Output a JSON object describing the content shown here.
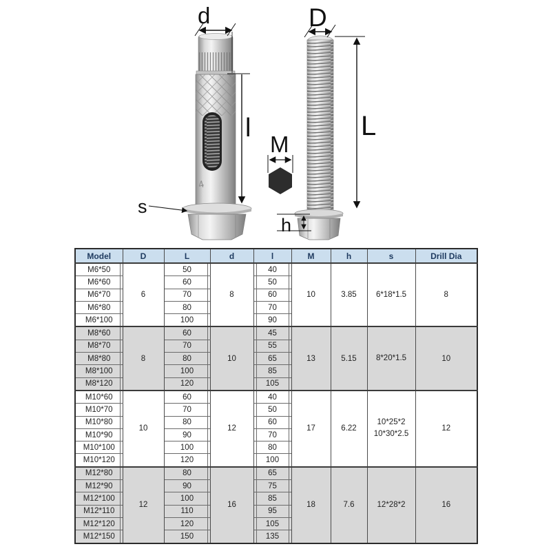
{
  "diagram": {
    "labels": {
      "d": "d",
      "l": "l",
      "s": "s",
      "D": "D",
      "L": "L",
      "M": "M",
      "h": "h"
    },
    "stamp": "4"
  },
  "colors": {
    "header_bg": "#cbdeee",
    "header_text": "#1e3a5f",
    "row_gray": "#d8d8d8",
    "row_white": "#ffffff",
    "border": "#3a3a3a",
    "annotation": "#111111",
    "hex_fill": "#2d2d2d"
  },
  "table": {
    "columns": [
      "Model",
      "D",
      "L",
      "d",
      "l",
      "M",
      "h",
      "s",
      "Drill Dia"
    ],
    "groups": [
      {
        "shade": "white",
        "D": "6",
        "d": "8",
        "M": "10",
        "h": "3.85",
        "s": "6*18*1.5",
        "drill": "8",
        "rows": [
          {
            "model": "M6*50",
            "L": "50",
            "l": "40"
          },
          {
            "model": "M6*60",
            "L": "60",
            "l": "50"
          },
          {
            "model": "M6*70",
            "L": "70",
            "l": "60"
          },
          {
            "model": "M6*80",
            "L": "80",
            "l": "70"
          },
          {
            "model": "M6*100",
            "L": "100",
            "l": "90"
          }
        ]
      },
      {
        "shade": "gray",
        "D": "8",
        "d": "10",
        "M": "13",
        "h": "5.15",
        "s": "8*20*1.5",
        "drill": "10",
        "rows": [
          {
            "model": "M8*60",
            "L": "60",
            "l": "45"
          },
          {
            "model": "M8*70",
            "L": "70",
            "l": "55"
          },
          {
            "model": "M8*80",
            "L": "80",
            "l": "65"
          },
          {
            "model": "M8*100",
            "L": "100",
            "l": "85"
          },
          {
            "model": "M8*120",
            "L": "120",
            "l": "105"
          }
        ]
      },
      {
        "shade": "white",
        "D": "10",
        "d": "12",
        "M": "17",
        "h": "6.22",
        "s": "10*25*2\n10*30*2.5",
        "drill": "12",
        "rows": [
          {
            "model": "M10*60",
            "L": "60",
            "l": "40"
          },
          {
            "model": "M10*70",
            "L": "70",
            "l": "50"
          },
          {
            "model": "M10*80",
            "L": "80",
            "l": "60"
          },
          {
            "model": "M10*90",
            "L": "90",
            "l": "70"
          },
          {
            "model": "M10*100",
            "L": "100",
            "l": "80"
          },
          {
            "model": "M10*120",
            "L": "120",
            "l": "100"
          }
        ]
      },
      {
        "shade": "gray",
        "D": "12",
        "d": "16",
        "M": "18",
        "h": "7.6",
        "s": "12*28*2",
        "drill": "16",
        "rows": [
          {
            "model": "M12*80",
            "L": "80",
            "l": "65"
          },
          {
            "model": "M12*90",
            "L": "90",
            "l": "75"
          },
          {
            "model": "M12*100",
            "L": "100",
            "l": "85"
          },
          {
            "model": "M12*110",
            "L": "110",
            "l": "95"
          },
          {
            "model": "M12*120",
            "L": "120",
            "l": "105"
          },
          {
            "model": "M12*150",
            "L": "150",
            "l": "135"
          }
        ]
      }
    ]
  }
}
